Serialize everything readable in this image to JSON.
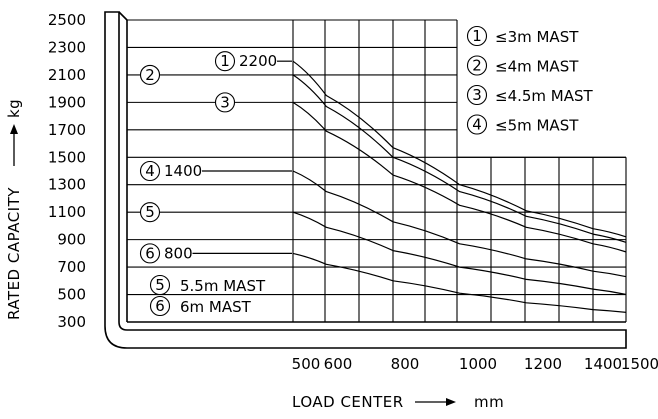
{
  "chart_data": {
    "type": "line",
    "xlabel": "LOAD CENTER",
    "xunit": "mm",
    "ylabel": "RATED CAPACITY",
    "yunit": "kg",
    "x_ticks": [
      500,
      600,
      800,
      1000,
      1200,
      1400,
      1500
    ],
    "y_ticks": [
      300,
      500,
      700,
      900,
      1100,
      1300,
      1500,
      1700,
      1900,
      2100,
      2300,
      2500
    ],
    "ylim": [
      300,
      2500
    ],
    "xlim_upper": 1500,
    "series": [
      {
        "marker": "1",
        "name": "≤3m MAST",
        "start_label": "2200",
        "x": [
          500,
          600,
          800,
          1000,
          1200,
          1400,
          1500
        ],
        "y": [
          2200,
          1950,
          1570,
          1300,
          1110,
          980,
          920
        ]
      },
      {
        "marker": "2",
        "name": "≤4m MAST",
        "start_label": "",
        "x": [
          500,
          600,
          800,
          1000,
          1200,
          1400,
          1500
        ],
        "y": [
          2100,
          1870,
          1500,
          1250,
          1070,
          940,
          880
        ]
      },
      {
        "marker": "3",
        "name": "≤4.5m MAST",
        "start_label": "",
        "x": [
          500,
          600,
          800,
          1000,
          1200,
          1400,
          1500
        ],
        "y": [
          1900,
          1690,
          1370,
          1150,
          990,
          870,
          810
        ]
      },
      {
        "marker": "4",
        "name": "≤5m MAST",
        "start_label": "1400",
        "x": [
          500,
          600,
          800,
          1000,
          1200,
          1400,
          1500
        ],
        "y": [
          1400,
          1250,
          1030,
          870,
          760,
          670,
          630
        ]
      },
      {
        "marker": "5",
        "name": "5.5m MAST",
        "start_label": "",
        "x": [
          500,
          600,
          800,
          1000,
          1200,
          1400,
          1500
        ],
        "y": [
          1100,
          990,
          820,
          700,
          610,
          540,
          500
        ]
      },
      {
        "marker": "6",
        "name": "6m MAST",
        "start_label": "800",
        "x": [
          500,
          600,
          800,
          1000,
          1200,
          1400,
          1500
        ],
        "y": [
          800,
          720,
          600,
          510,
          440,
          390,
          370
        ]
      }
    ],
    "legend_top_right": [
      {
        "marker": "1",
        "text": "≤3m MAST"
      },
      {
        "marker": "2",
        "text": "≤4m MAST"
      },
      {
        "marker": "3",
        "text": "≤4.5m MAST"
      },
      {
        "marker": "4",
        "text": "≤5m MAST"
      }
    ],
    "legend_bottom_left": [
      {
        "marker": "5",
        "text": "5.5m MAST"
      },
      {
        "marker": "6",
        "text": "6m MAST"
      }
    ]
  }
}
